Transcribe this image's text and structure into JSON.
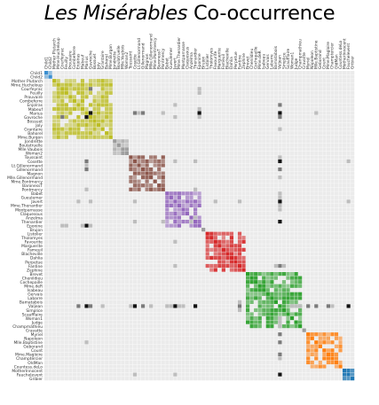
{
  "chart_data": {
    "type": "heatmap",
    "title_italic": "Les Misérables",
    "title_rest": " Co-occurrence",
    "row_labels": [
      "Child1",
      "Child2",
      "Mother Plutarch",
      "Mme.Hucheloup",
      "Courfeyrac",
      "Feuilly",
      "Prouvaire",
      "Combeferre",
      "Enjolras",
      "Mabeuf",
      "Marius",
      "Gavroche",
      "Bossuet",
      "Joly",
      "Grantaire",
      "Bahorel",
      "Mme.Burgon",
      "Jondrette",
      "Boulatruelle",
      "Mlle.Vaubois",
      "Woman2",
      "Toussaint",
      "Cosette",
      "Lt.Gillenormand",
      "Gillenormand",
      "Magnon",
      "Mlle.Gillenormand",
      "Mme.Pontmercy",
      "BaronessT",
      "Pontmercy",
      "Babet",
      "Gueulemer",
      "Javert",
      "Mme.Thenardier",
      "Montparnasse",
      "Claquesous",
      "Anzelma",
      "Thenardier",
      "Eponine",
      "Brujon",
      "Listolier",
      "Tholomyes",
      "Favourite",
      "Marguerite",
      "Fameuil",
      "Blacheville",
      "Dahlia",
      "Perpetue",
      "Fantine",
      "Zephine",
      "Brevet",
      "Chenildieu",
      "Cochepaille",
      "Mme.deR",
      "Isabeau",
      "Gervais",
      "Labarre",
      "Bamatabois",
      "Valjean",
      "Simplice",
      "Scaufflaire",
      "Woman1",
      "Judge",
      "Champmathieu",
      "Cravatte",
      "Myriel",
      "Napoleon",
      "Mlle.Baptistine",
      "Geborand",
      "Count",
      "Mme.Magloire",
      "Champtercier",
      "OldMan",
      "Countess.deLo",
      "MotherInnocent",
      "Fauchelevent",
      "Gribier"
    ],
    "column_labels": [
      "Child1",
      "Child2",
      "Mother Plutarch",
      "Mme.Hucheloup",
      "Courfeyrac",
      "Feuilly",
      "Prouvaire",
      "Combeferre",
      "Enjolras",
      "Mabeuf",
      "Marius",
      "Gavroche",
      "Bossuet",
      "Joly",
      "Grantaire",
      "Bahorel",
      "Mme.Burgon",
      "Jondrette",
      "Boulatruelle",
      "Mlle.Vaubois",
      "Woman2",
      "Toussaint",
      "Cosette",
      "Lt.Gillenormand",
      "Gillenormand",
      "Magnon",
      "Mlle.Gillenormand",
      "Mme.Pontmercy",
      "BaronessT",
      "Pontmercy",
      "Babet",
      "Gueulemer",
      "Javert",
      "Mme.Thenardier",
      "Montparnasse",
      "Claquesous",
      "Anzelma",
      "Thenardier",
      "Eponine",
      "Brujon",
      "Listolier",
      "Tholomyes",
      "Favourite",
      "Marguerite",
      "Fameuil",
      "Blacheville",
      "Dahlia",
      "Perpetue",
      "Fantine",
      "Zephine",
      "Brevet",
      "Chenildieu",
      "Cochepaille",
      "Mme.deR",
      "Isabeau",
      "Gervais",
      "Labarre",
      "Bamatabois",
      "Valjean",
      "Simplice",
      "Scaufflaire",
      "Woman1",
      "Judge",
      "Champmathieu",
      "Cravatte",
      "Myriel",
      "Napoleon",
      "Mlle.Baptistine",
      "Geborand",
      "Count",
      "Mme.Magloire",
      "Champtercier",
      "OldMan",
      "Countess.deLo",
      "MotherInnocent",
      "Fauchelevent",
      "Gribier"
    ],
    "groups": [
      {
        "rows": [
          0,
          1
        ],
        "color": "#3b8fd0"
      },
      {
        "rows": [
          2,
          16
        ],
        "color": "#bcbd22"
      },
      {
        "rows": [
          17,
          20
        ],
        "color": "#9c9c9c"
      },
      {
        "rows": [
          21,
          29
        ],
        "color": "#8c564b"
      },
      {
        "rows": [
          30,
          38
        ],
        "color": "#9467bd"
      },
      {
        "rows": [
          39,
          39
        ],
        "color": "#9c9c9c"
      },
      {
        "rows": [
          40,
          49
        ],
        "color": "#d62728"
      },
      {
        "rows": [
          50,
          63
        ],
        "color": "#2ca02c"
      },
      {
        "rows": [
          64,
          64
        ],
        "color": "#9c9c9c"
      },
      {
        "rows": [
          65,
          73
        ],
        "color": "#ff7f0e"
      },
      {
        "rows": [
          74,
          76
        ],
        "color": "#1f77b4"
      }
    ],
    "between_group_links": [
      [
        10,
        22,
        2
      ],
      [
        10,
        23,
        1
      ],
      [
        10,
        24,
        2
      ],
      [
        10,
        29,
        1
      ],
      [
        10,
        38,
        3
      ],
      [
        10,
        58,
        3
      ],
      [
        11,
        32,
        1
      ],
      [
        11,
        38,
        1
      ],
      [
        11,
        58,
        2
      ],
      [
        8,
        58,
        2
      ],
      [
        8,
        32,
        1
      ],
      [
        9,
        38,
        1
      ],
      [
        4,
        38,
        1
      ],
      [
        22,
        32,
        1
      ],
      [
        22,
        58,
        3
      ],
      [
        22,
        37,
        1
      ],
      [
        22,
        75,
        1
      ],
      [
        24,
        58,
        2
      ],
      [
        32,
        58,
        3
      ],
      [
        37,
        58,
        3
      ],
      [
        33,
        58,
        1
      ],
      [
        48,
        58,
        2
      ],
      [
        48,
        32,
        1
      ],
      [
        65,
        58,
        2
      ],
      [
        75,
        58,
        3
      ],
      [
        75,
        32,
        1
      ],
      [
        58,
        70,
        2
      ],
      [
        58,
        67,
        2
      ],
      [
        58,
        71,
        1
      ],
      [
        59,
        48,
        1
      ],
      [
        30,
        58,
        1
      ],
      [
        31,
        58,
        1
      ],
      [
        34,
        58,
        1
      ],
      [
        57,
        48,
        1
      ],
      [
        62,
        58,
        1
      ],
      [
        63,
        58,
        1
      ],
      [
        61,
        58,
        1
      ],
      [
        21,
        58,
        1
      ],
      [
        5,
        38,
        1
      ],
      [
        14,
        58,
        1
      ],
      [
        26,
        58,
        1
      ],
      [
        37,
        29,
        1
      ],
      [
        36,
        37,
        1
      ],
      [
        42,
        32,
        1
      ],
      [
        10,
        67,
        1
      ],
      [
        4,
        11,
        2
      ],
      [
        10,
        11,
        3
      ]
    ]
  }
}
